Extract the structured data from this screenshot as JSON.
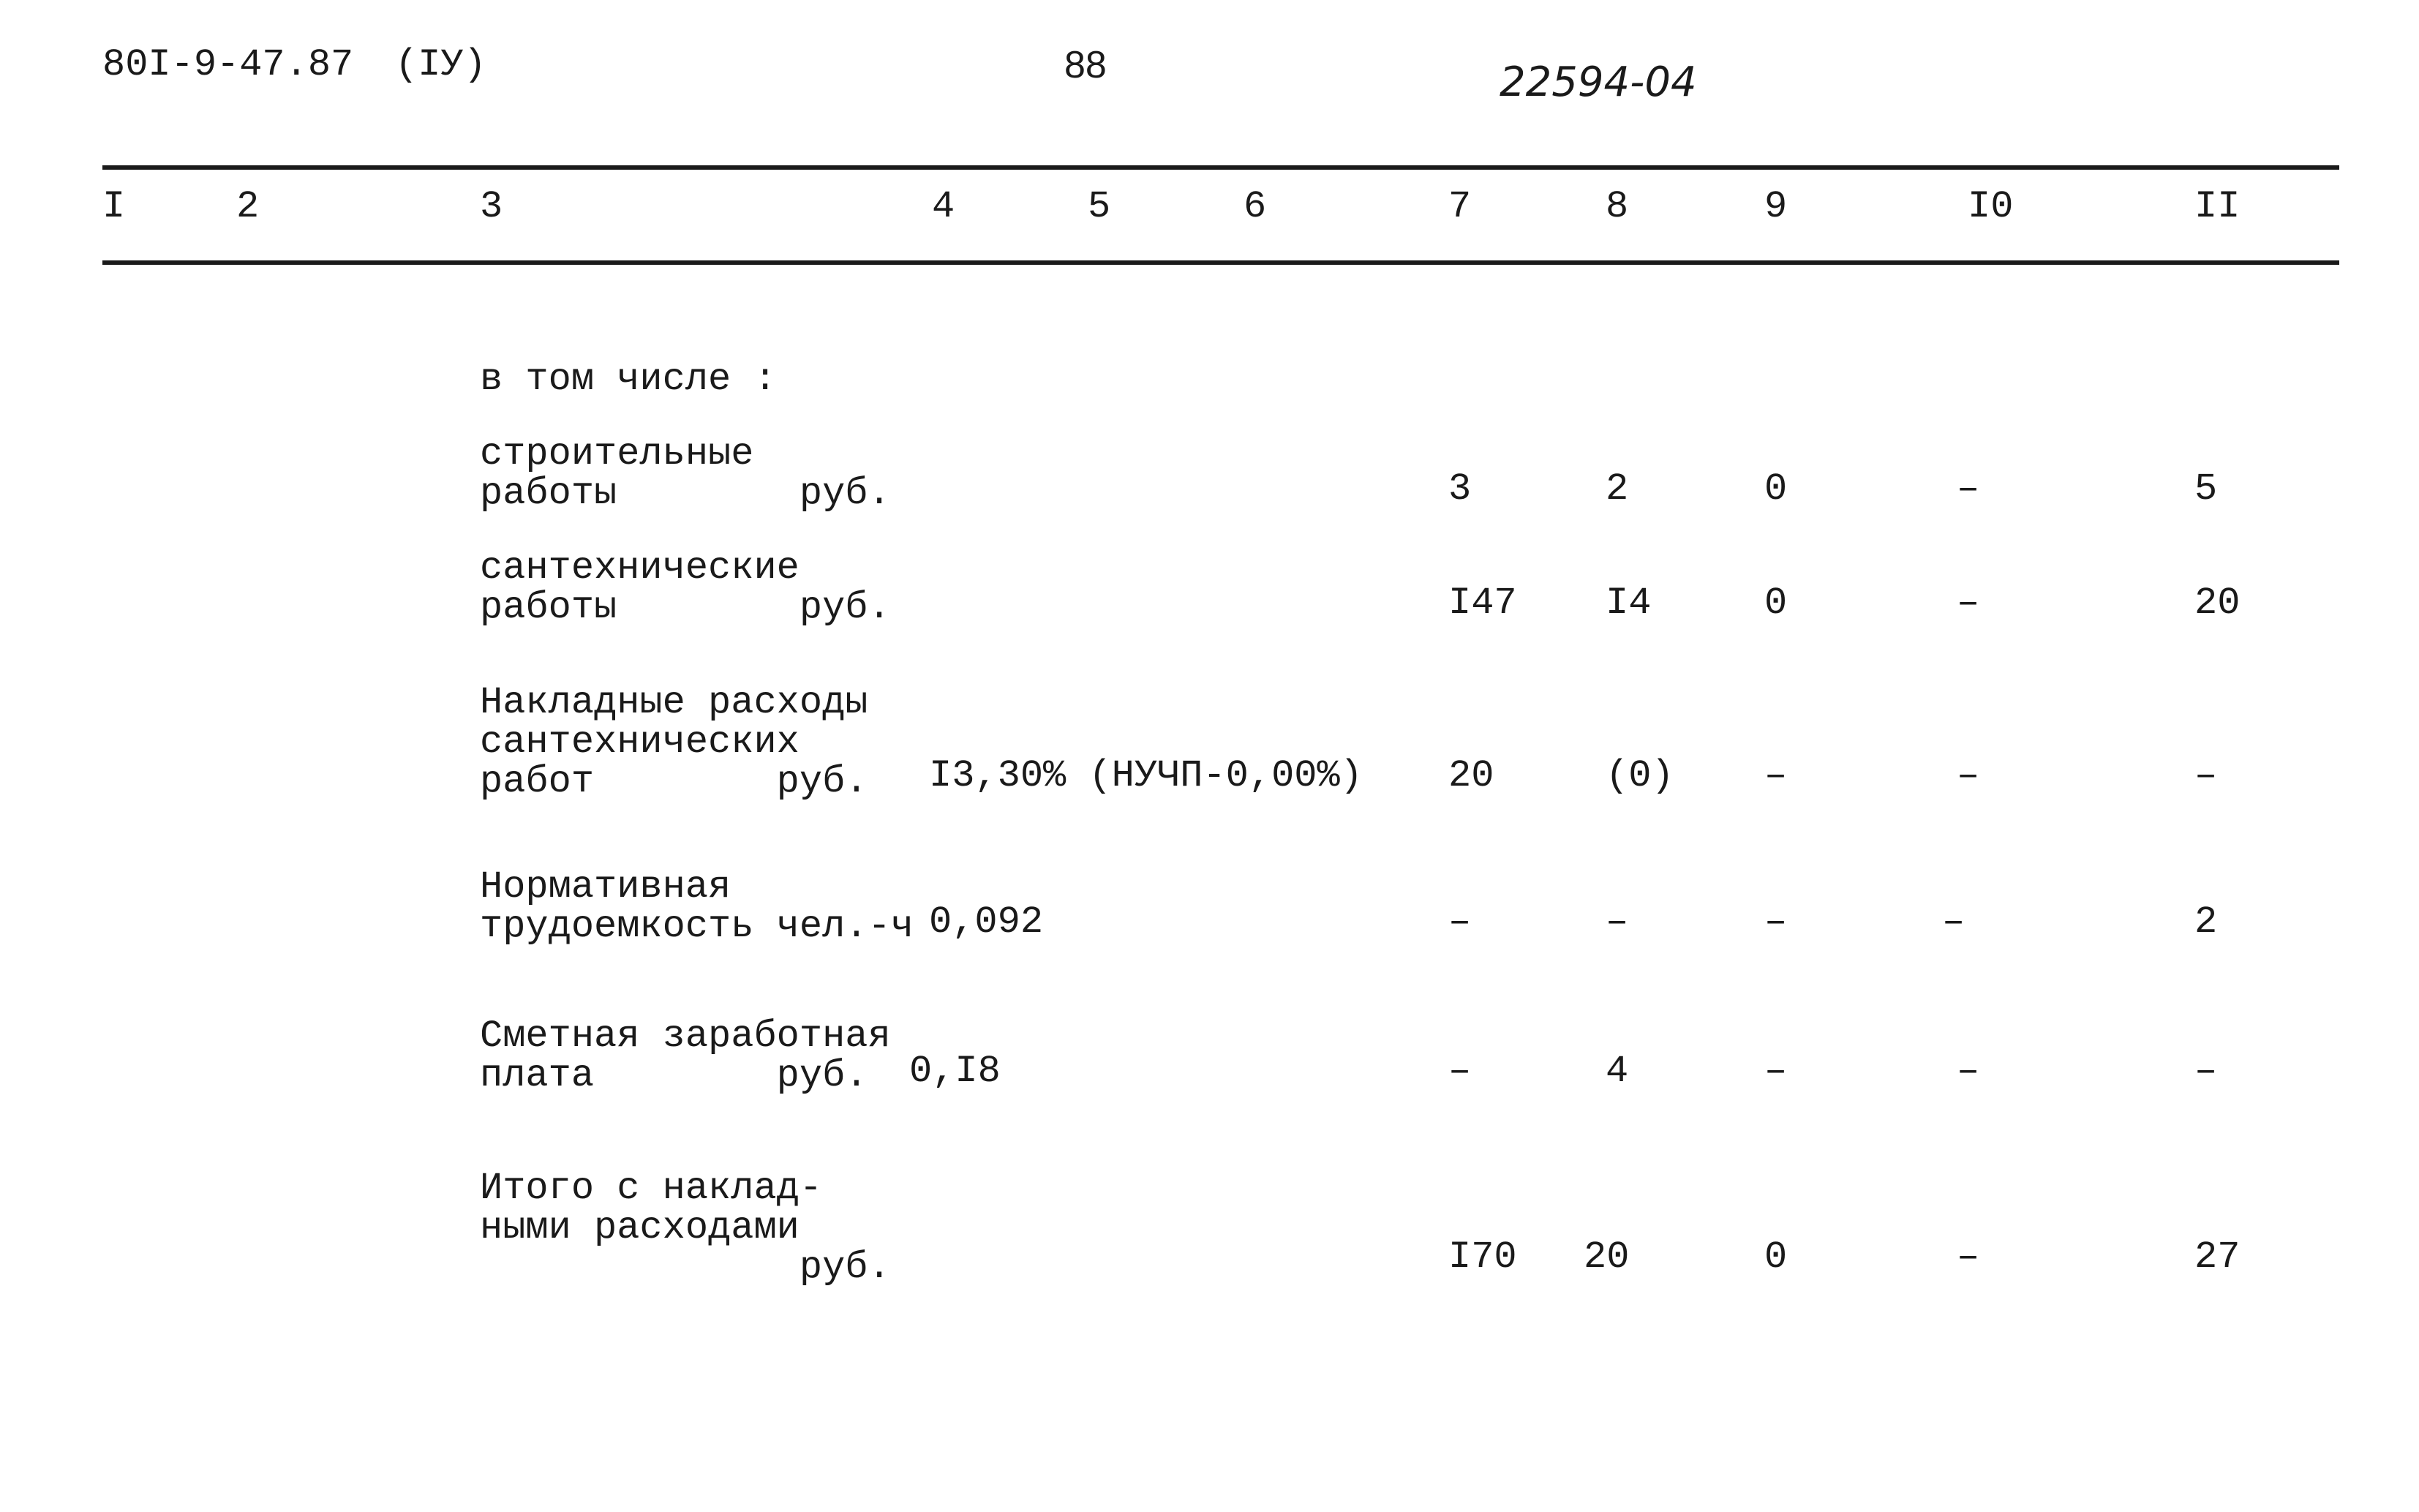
{
  "header": {
    "doc_code": "80I-9-47.87",
    "volume": "(IУ)",
    "page_number": "88",
    "stamp": "22594-04"
  },
  "columns": [
    "I",
    "2",
    "3",
    "4",
    "5",
    "6",
    "7",
    "8",
    "9",
    "I0",
    "II"
  ],
  "intro": "в том числе :",
  "rows": [
    {
      "label": [
        "строительные",
        "работы        руб."
      ],
      "norm": "",
      "c7": "3",
      "c8": "2",
      "c9": "0",
      "c10": "–",
      "c11": "5"
    },
    {
      "label": [
        "сантехнические",
        "работы        руб."
      ],
      "norm": "",
      "c7": "I47",
      "c8": "I4",
      "c9": "0",
      "c10": "–",
      "c11": "20"
    },
    {
      "label": [
        "Накладные расходы",
        "сантехнических",
        "работ        руб."
      ],
      "norm": "I3,30% (НУЧП-0,00%)",
      "c7": "20",
      "c8": "(0)",
      "c9": "–",
      "c10": "–",
      "c11": "–"
    },
    {
      "label": [
        "Нормативная",
        "трудоемкость чел.-ч"
      ],
      "norm": "0,092",
      "c7": "–",
      "c8": "–",
      "c9": "–",
      "c10": "–",
      "c11": "2"
    },
    {
      "label": [
        "Сметная заработная",
        "плата        руб."
      ],
      "norm": "0,I8",
      "c7": "–",
      "c8": "4",
      "c9": "–",
      "c10": "–",
      "c11": "–"
    },
    {
      "label": [
        "Итого с наклад-",
        "ными расходами",
        "              руб."
      ],
      "norm": "",
      "c7": "I70",
      "c8": "20",
      "c9": "0",
      "c10": "–",
      "c11": "27"
    }
  ]
}
